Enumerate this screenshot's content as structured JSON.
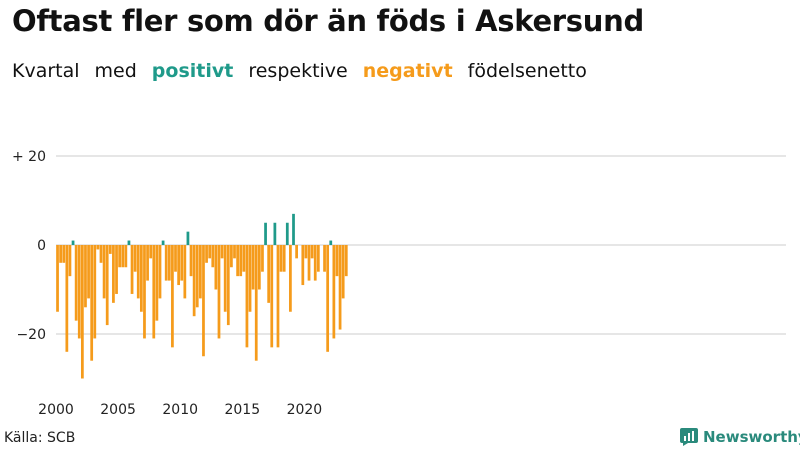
{
  "title": "Oftast fler som dör än föds i Askersund",
  "subtitle": {
    "part1": "Kvartal",
    "part2": "med",
    "positive_word": "positivt",
    "part3": "respektive",
    "negative_word": "negativt",
    "part4": "födelsenetto"
  },
  "source": "Källa: SCB",
  "brand": "Newsworthy",
  "colors": {
    "positive": "#1f9a8a",
    "negative": "#f59b1b",
    "grid": "#cccccc",
    "brand": "#2a8a7c"
  },
  "chart_data": {
    "type": "bar",
    "title": "Oftast fler som dör än föds i Askersund",
    "ylim": [
      -32,
      23
    ],
    "xlim": [
      2000,
      2024
    ],
    "grid": true,
    "y_ticks": [
      {
        "value": 20,
        "label": "+ 20"
      },
      {
        "value": 0,
        "label": "0"
      },
      {
        "value": -20,
        "label": "−20"
      }
    ],
    "x_ticks": [
      {
        "value": 2000,
        "label": "2000"
      },
      {
        "value": 2005,
        "label": "2005"
      },
      {
        "value": 2010,
        "label": "2010"
      },
      {
        "value": 2015,
        "label": "2015"
      },
      {
        "value": 2020,
        "label": "2020"
      }
    ],
    "start": "2000 Q1",
    "values": [
      -15,
      -4,
      -4,
      -24,
      -7,
      1,
      -17,
      -21,
      -30,
      -14,
      -12,
      -26,
      -21,
      -1,
      -4,
      -12,
      -18,
      -2,
      -13,
      -11,
      -5,
      -5,
      -5,
      1,
      -11,
      -6,
      -12,
      -15,
      -21,
      -8,
      -3,
      -21,
      -17,
      -12,
      1,
      -8,
      -8,
      -23,
      -6,
      -9,
      -8,
      -12,
      3,
      -7,
      -16,
      -14,
      -12,
      -25,
      -4,
      -3,
      -5,
      -10,
      -21,
      -3,
      -15,
      -18,
      -5,
      -3,
      -7,
      -7,
      -6,
      -23,
      -15,
      -10,
      -26,
      -10,
      -6,
      5,
      -13,
      -23,
      5,
      -23,
      -6,
      -6,
      5,
      -15,
      7,
      -3,
      0,
      -9,
      -3,
      -8,
      -3,
      -8,
      -6,
      0,
      -6,
      -24,
      1,
      -21,
      -7,
      -19,
      -12,
      -7
    ]
  }
}
